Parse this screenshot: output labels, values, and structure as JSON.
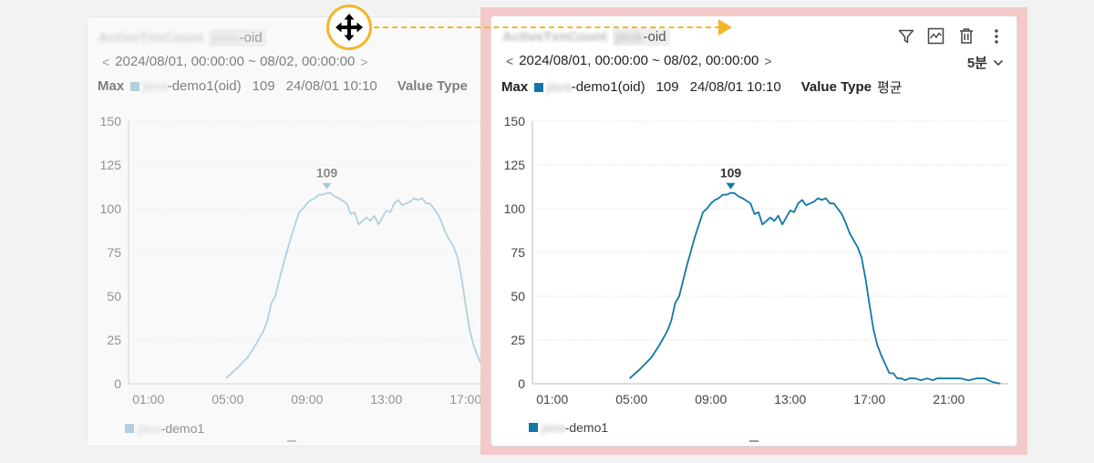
{
  "ghost_widget": {
    "title": "ActiveTxnCount",
    "chip_blur": "java",
    "chip_suffix": "-oid",
    "range_prev_icon": "<",
    "range_text": "2024/08/01, 00:00:00 ~ 08/02, 00:00:00",
    "range_next_icon": ">",
    "max_label": "Max",
    "series_prefix_blur": "java",
    "series_name": "-demo1(oid)",
    "max_value": "109",
    "max_time": "24/08/01 10:10",
    "value_type_label": "Value Type",
    "legend_blur": "java",
    "legend_name": "-demo1",
    "color": "#7fb6d1"
  },
  "main_widget": {
    "title": "ActiveTxnCount",
    "chip_blur": "java",
    "chip_suffix": "-oid",
    "range_prev_icon": "<",
    "range_text": "2024/08/01, 00:00:00 ~ 08/02, 00:00:00",
    "range_next_icon": ">",
    "max_label": "Max",
    "series_prefix_blur": "java",
    "series_name": "-demo1(oid)",
    "max_value": "109",
    "max_time": "24/08/01 10:10",
    "value_type_label": "Value Type",
    "value_type_value": "평균",
    "interval_label": "5분",
    "legend_blur": "java",
    "legend_name": "-demo1",
    "toolbar_icons": [
      "filter-icon",
      "chart-icon",
      "trash-icon",
      "more-icon"
    ],
    "color": "#1177a8"
  },
  "drag": {
    "handle_icon": "move-icon",
    "arrow_color": "#f2b72a",
    "highlight_color": "#f4c9c9"
  },
  "chart_data": [
    {
      "type": "line",
      "series": [
        {
          "name": "-demo1",
          "x": [
            4.9,
            5.4,
            6.0,
            6.4,
            6.8,
            7.0,
            7.2,
            7.4,
            7.6,
            7.8,
            8.0,
            8.2,
            8.4,
            8.6,
            8.8,
            9.0,
            9.2,
            9.4,
            9.6,
            9.8,
            10.0,
            10.17,
            10.4,
            10.6,
            11.0,
            11.2,
            11.4,
            11.6,
            11.8,
            12.0,
            12.2,
            12.4,
            12.6,
            12.8,
            13.0,
            13.2,
            13.4,
            13.6,
            13.8,
            14.0,
            14.2,
            14.4,
            14.6,
            14.8,
            15.0,
            15.2,
            15.4,
            15.6,
            15.8,
            16.0,
            16.2,
            16.4,
            16.6,
            16.8,
            17.0,
            17.2,
            17.4,
            17.6,
            17.8,
            18.0,
            18.2,
            18.4,
            18.6,
            18.8,
            19.0,
            19.3,
            19.6,
            19.9,
            20.2,
            20.4,
            20.6,
            20.8,
            21.0,
            21.3,
            21.6,
            22.0,
            22.4,
            22.8,
            23.2,
            23.6
          ],
          "values": [
            3,
            8,
            15,
            22,
            30,
            36,
            46,
            50,
            59,
            68,
            76,
            84,
            91,
            98,
            100,
            103,
            105,
            106,
            108,
            108,
            109,
            109,
            107,
            106,
            103,
            97,
            98,
            91,
            93,
            95,
            93,
            96,
            91,
            95,
            99,
            98,
            103,
            105,
            102,
            103,
            104,
            106,
            105,
            106,
            103,
            103,
            100,
            97,
            92,
            86,
            82,
            78,
            72,
            60,
            45,
            31,
            22,
            16,
            11,
            6,
            6,
            3,
            3,
            2,
            3,
            3,
            2,
            3,
            2,
            3,
            3,
            3,
            3,
            3,
            3,
            2,
            3,
            3,
            1,
            0
          ]
        }
      ],
      "xlabel": "",
      "ylabel": "",
      "x_tick_labels": [
        "01:00",
        "05:00",
        "09:00",
        "13:00",
        "17:00"
      ],
      "y_tick_labels": [
        "0",
        "25",
        "50",
        "75",
        "100",
        "125",
        "150"
      ],
      "ylim": [
        0,
        150
      ],
      "xlim": [
        0,
        24
      ],
      "visible_x_max": 18.4,
      "max_marker": {
        "x": 10.0,
        "value": "109"
      },
      "grid": true
    },
    {
      "type": "line",
      "series": [
        {
          "name": "-demo1",
          "x": [
            4.9,
            5.4,
            6.0,
            6.4,
            6.8,
            7.0,
            7.2,
            7.4,
            7.6,
            7.8,
            8.0,
            8.2,
            8.4,
            8.6,
            8.8,
            9.0,
            9.2,
            9.4,
            9.6,
            9.8,
            10.0,
            10.17,
            10.4,
            10.6,
            11.0,
            11.2,
            11.4,
            11.6,
            11.8,
            12.0,
            12.2,
            12.4,
            12.6,
            12.8,
            13.0,
            13.2,
            13.4,
            13.6,
            13.8,
            14.0,
            14.2,
            14.4,
            14.6,
            14.8,
            15.0,
            15.2,
            15.4,
            15.6,
            15.8,
            16.0,
            16.2,
            16.4,
            16.6,
            16.8,
            17.0,
            17.2,
            17.4,
            17.6,
            17.8,
            18.0,
            18.2,
            18.4,
            18.6,
            18.8,
            19.0,
            19.3,
            19.6,
            19.9,
            20.2,
            20.4,
            20.6,
            20.8,
            21.0,
            21.3,
            21.6,
            22.0,
            22.4,
            22.8,
            23.2,
            23.6
          ],
          "values": [
            3,
            8,
            15,
            22,
            30,
            36,
            46,
            50,
            59,
            68,
            76,
            84,
            91,
            98,
            100,
            103,
            105,
            106,
            108,
            108,
            109,
            109,
            107,
            106,
            103,
            97,
            98,
            91,
            93,
            95,
            93,
            96,
            91,
            95,
            99,
            98,
            103,
            105,
            102,
            103,
            104,
            106,
            105,
            106,
            103,
            103,
            100,
            97,
            92,
            86,
            82,
            78,
            72,
            60,
            45,
            31,
            22,
            16,
            11,
            6,
            6,
            3,
            3,
            2,
            3,
            3,
            2,
            3,
            2,
            3,
            3,
            3,
            3,
            3,
            3,
            2,
            3,
            3,
            1,
            0
          ]
        }
      ],
      "xlabel": "",
      "ylabel": "",
      "x_tick_labels": [
        "01:00",
        "05:00",
        "09:00",
        "13:00",
        "17:00",
        "21:00"
      ],
      "y_tick_labels": [
        "0",
        "25",
        "50",
        "75",
        "100",
        "125",
        "150"
      ],
      "ylim": [
        0,
        150
      ],
      "xlim": [
        0,
        24
      ],
      "max_marker": {
        "x": 10.0,
        "value": "109"
      },
      "grid": true
    }
  ]
}
